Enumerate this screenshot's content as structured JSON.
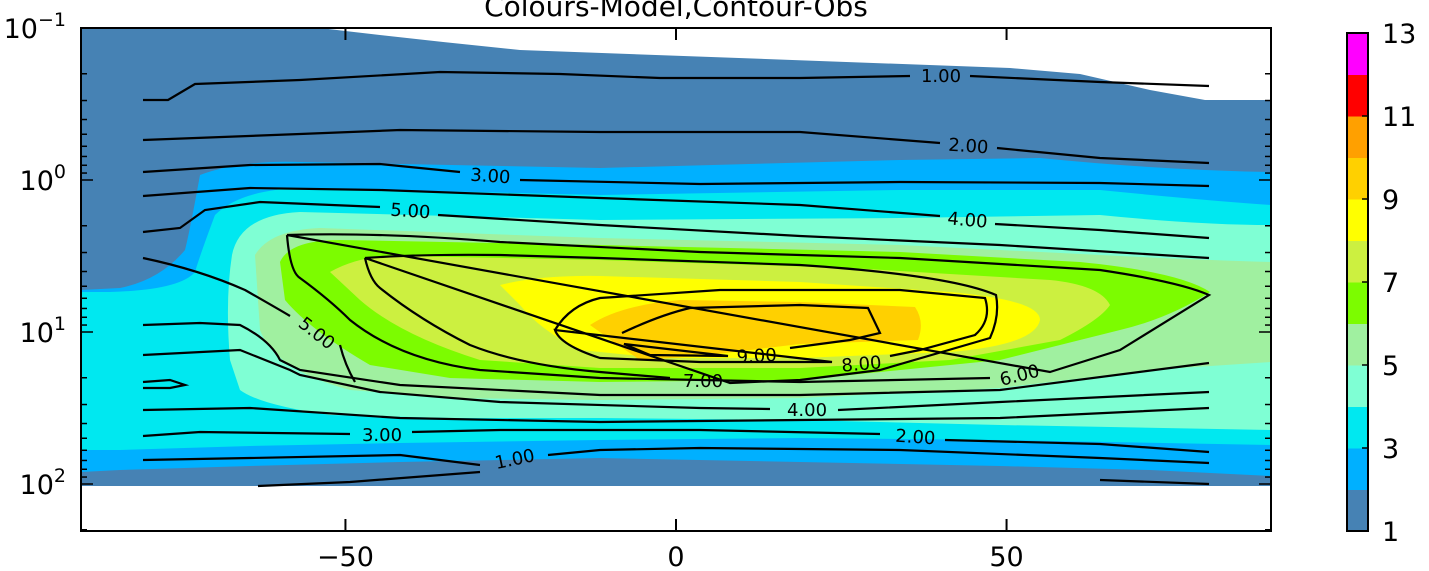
{
  "chart_data": {
    "type": "contour",
    "title": "Colours-Model,Contour-Obs",
    "x_ticks": [
      -50,
      0,
      50
    ],
    "xlim": [
      -90,
      90
    ],
    "y_scale": "log",
    "y_inverted": true,
    "ylim": [
      200,
      0.1
    ],
    "y_tick_labels": [
      {
        "value": 0.1,
        "base": "10",
        "exp": "-1"
      },
      {
        "value": 1,
        "base": "10",
        "exp": "0"
      },
      {
        "value": 10,
        "base": "10",
        "exp": "1"
      },
      {
        "value": 100,
        "base": "10",
        "exp": "2"
      }
    ],
    "colorbar": {
      "levels": [
        1,
        2,
        3,
        4,
        5,
        6,
        7,
        8,
        9,
        10,
        11,
        12,
        13
      ],
      "tick_labels": [
        "1",
        "3",
        "5",
        "7",
        "9",
        "11",
        "13"
      ],
      "colors": [
        "#4682b4",
        "#00b0ff",
        "#00e8f0",
        "#7fffd4",
        "#a0f0a0",
        "#7cfc00",
        "#ccf040",
        "#ffff00",
        "#ffd000",
        "#ffa000",
        "#ff0000",
        "#ff00ff"
      ]
    },
    "model_fill_levels": [
      {
        "level": 1,
        "color": "#4682b4"
      },
      {
        "level": 2,
        "color": "#00b0ff"
      },
      {
        "level": 3,
        "color": "#00e8f0"
      },
      {
        "level": 4,
        "color": "#7fffd4"
      },
      {
        "level": 5,
        "color": "#a0f0a0"
      },
      {
        "level": 6,
        "color": "#7cfc00"
      },
      {
        "level": 7,
        "color": "#ccf040"
      },
      {
        "level": 8,
        "color": "#ffff00"
      },
      {
        "level": 9,
        "color": "#ffd000"
      }
    ],
    "obs_contour_labels": [
      {
        "text": "1.00",
        "x": 40,
        "p": 0.3
      },
      {
        "text": "2.00",
        "x": 45,
        "p": 0.72
      },
      {
        "text": "3.00",
        "x": -28,
        "p": 1.0
      },
      {
        "text": "4.00",
        "x": 44,
        "p": 2.5
      },
      {
        "text": "5.00",
        "x": -40,
        "p": 2.0
      },
      {
        "text": "5.00",
        "x": -55,
        "p": 10.0
      },
      {
        "text": "6.00",
        "x": 56,
        "p": 27.0
      },
      {
        "text": "7.00",
        "x": 4,
        "p": 30.0
      },
      {
        "text": "8.00",
        "x": 28,
        "p": 19.0
      },
      {
        "text": "9.00",
        "x": 12,
        "p": 14.0
      },
      {
        "text": "4.00",
        "x": 19,
        "p": 50.0
      },
      {
        "text": "3.00",
        "x": -44,
        "p": 68.0
      },
      {
        "text": "2.00",
        "x": 36,
        "p": 70.0
      },
      {
        "text": "1.00",
        "x": -25,
        "p": 95.0
      }
    ]
  }
}
